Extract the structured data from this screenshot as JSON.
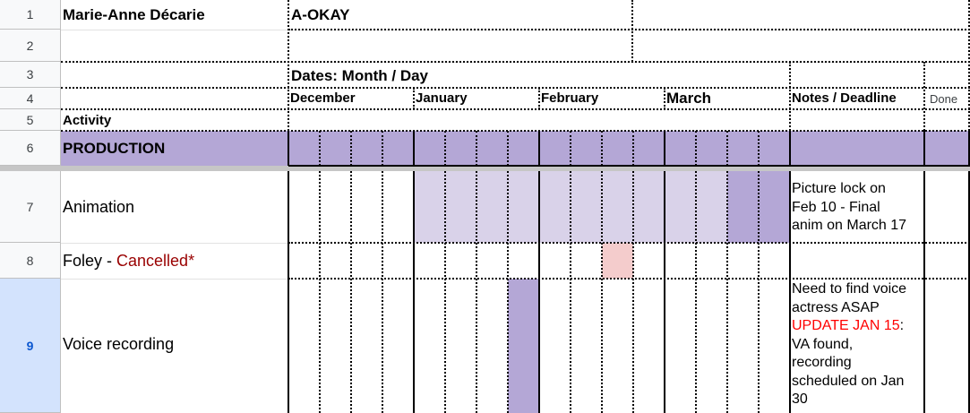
{
  "sheet": {
    "row_numbers": [
      "1",
      "2",
      "3",
      "4",
      "5",
      "6",
      "7",
      "8",
      "9"
    ],
    "row1": {
      "name": "Marie-Anne Décarie",
      "title": "A-OKAY"
    },
    "row3": {
      "dates_label": "Dates: Month / Day"
    },
    "row4": {
      "months": [
        "December",
        "January",
        "February",
        "March"
      ],
      "notes_header": "Notes / Deadline",
      "done_header": "Done"
    },
    "row5": {
      "activity_header": "Activity"
    },
    "row6": {
      "section": "PRODUCTION"
    },
    "rows": [
      {
        "activity": "Animation",
        "note_lines": [
          "Picture lock on",
          "Feb 10 - Final",
          "anim on March 17"
        ]
      },
      {
        "activity": "Foley - ",
        "status": "Cancelled*"
      },
      {
        "activity": "Voice recording",
        "note_lines_before": [
          "Need to find voice",
          "actress ASAP"
        ],
        "note_highlight": "UPDATE JAN 15",
        "note_after_highlight": ":",
        "note_lines_after": [
          "VA found,",
          "recording",
          "scheduled on Jan",
          "30"
        ]
      }
    ],
    "colors": {
      "section_purple": "#b4a7d6",
      "light_purple": "#d9d2e9",
      "pink": "#f4cccc",
      "cancel_red": "#990000",
      "update_red": "#ff0000"
    }
  }
}
